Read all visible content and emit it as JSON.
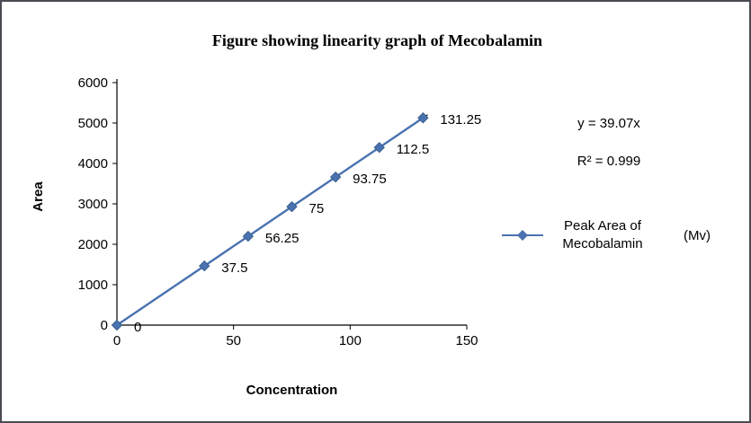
{
  "chart_data": {
    "type": "line",
    "title": "Figure showing linearity graph of  Mecobalamin",
    "xlabel": "Concentration",
    "ylabel": "Area",
    "x": [
      0,
      37.5,
      56.25,
      75,
      93.75,
      112.5,
      131.25
    ],
    "y": [
      0,
      1465,
      2198,
      2930,
      3663,
      4395,
      5128
    ],
    "point_labels": [
      "0",
      "37.5",
      "56.25",
      "75",
      "93.75",
      "112.5",
      "131.25"
    ],
    "xlim": [
      0,
      150
    ],
    "ylim": [
      0,
      6000
    ],
    "x_ticks": [
      0,
      50,
      100,
      150
    ],
    "y_ticks": [
      0,
      1000,
      2000,
      3000,
      4000,
      5000,
      6000
    ],
    "equation": "y = 39.07x",
    "r_squared": "R² = 0.999",
    "trend_slope": 39.07,
    "legend_label": "Peak Area of Mecobalamin",
    "legend_suffix": "(Mv)",
    "series_color": "#4a72b0",
    "trendline_color": "#000000",
    "grid": false,
    "legend_position": "right"
  }
}
